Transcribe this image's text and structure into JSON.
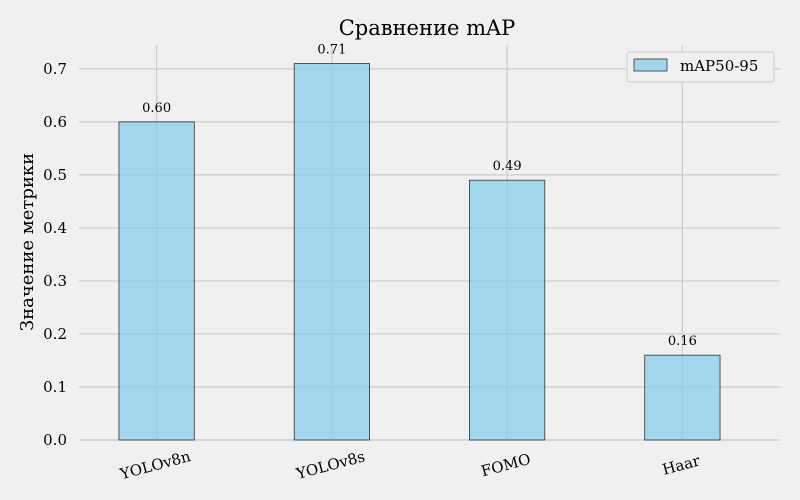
{
  "chart_data": {
    "type": "bar",
    "title": "Сравнение mAP",
    "xlabel": "",
    "ylabel": "Значение метрики",
    "categories": [
      "YOLOv8n",
      "YOLOv8s",
      "FOMO",
      "Haar"
    ],
    "series": [
      {
        "name": "mAP50-95",
        "values": [
          0.6,
          0.71,
          0.49,
          0.16
        ],
        "color": "#87ceeb"
      }
    ],
    "data_labels": [
      "0.60",
      "0.71",
      "0.49",
      "0.16"
    ],
    "ylim": [
      0,
      0.745
    ],
    "yticks": [
      0.0,
      0.1,
      0.2,
      0.3,
      0.4,
      0.5,
      0.6,
      0.7
    ],
    "ytick_labels": [
      "0.0",
      "0.1",
      "0.2",
      "0.3",
      "0.4",
      "0.5",
      "0.6",
      "0.7"
    ],
    "grid": true,
    "legend_position": "top-right",
    "colors": {
      "background": "#f0f0f0",
      "grid": "#cbcbcb",
      "bar_edge": "#333333"
    }
  }
}
